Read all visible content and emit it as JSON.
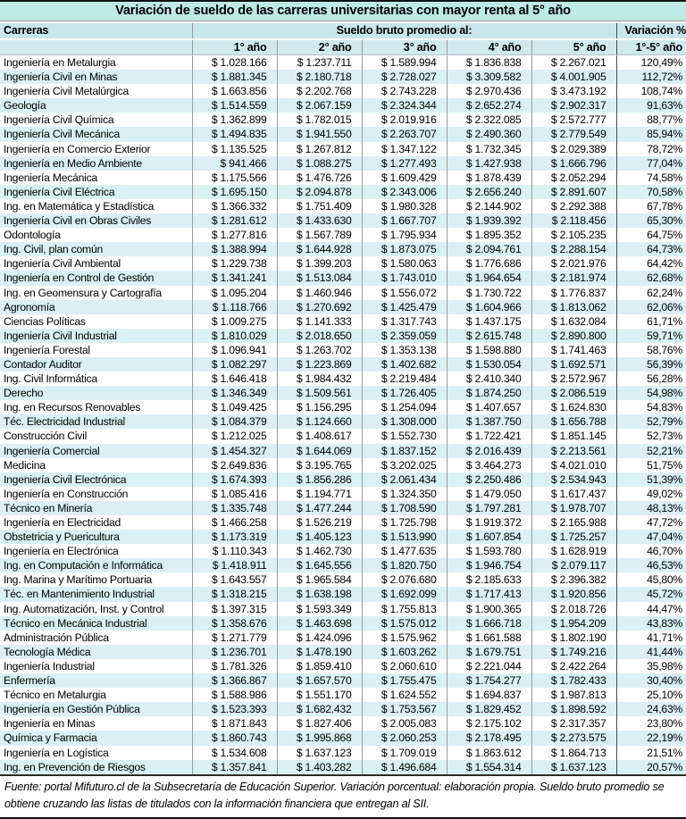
{
  "title": "Variación de sueldo de las carreras universitarias con mayor renta al 5° año",
  "header": {
    "careers": "Carreras",
    "salary_group": "Sueldo bruto promedio al:",
    "variation": "Variación %",
    "year_cols": [
      "1° año",
      "2° año",
      "3° año",
      "4° año",
      "5° año"
    ],
    "variation_sub": "1°-5° año"
  },
  "colors": {
    "title_band": "#bdeae3",
    "header_band": "#c9e6ed",
    "subheader_band": "#cfe9ef",
    "alt_row": "#daf0f4",
    "grid_line": "#9b9b9b",
    "heavy_line": "#4a4a4a"
  },
  "table": {
    "rows": [
      {
        "carrera": "Ingeniería en Metalurgia",
        "values": [
          "$ 1.028.166",
          "$ 1.237.711",
          "$ 1.589.994",
          "$ 1.836.838",
          "$ 2.267.021"
        ],
        "variacion": "120,49%"
      },
      {
        "carrera": "Ingeniería Civil en Minas",
        "values": [
          "$ 1.881.345",
          "$ 2.180.718",
          "$ 2.728.027",
          "$ 3.309.582",
          "$ 4.001.905"
        ],
        "variacion": "112,72%"
      },
      {
        "carrera": "Ingeniería Civil Metalúrgica",
        "values": [
          "$ 1.663.856",
          "$ 2.202.768",
          "$ 2.743.228",
          "$ 2.970.436",
          "$ 3.473.192"
        ],
        "variacion": "108,74%"
      },
      {
        "carrera": "Geología",
        "values": [
          "$ 1.514.559",
          "$ 2.067.159",
          "$ 2.324.344",
          "$ 2.652.274",
          "$ 2.902.317"
        ],
        "variacion": "91,63%"
      },
      {
        "carrera": "Ingeniería Civil Química",
        "values": [
          "$ 1.362.899",
          "$ 1.782.015",
          "$ 2.019.916",
          "$ 2.322.085",
          "$ 2.572.777"
        ],
        "variacion": "88,77%"
      },
      {
        "carrera": "Ingeniería Civil Mecánica",
        "values": [
          "$ 1.494.835",
          "$ 1.941.550",
          "$ 2.263.707",
          "$ 2.490.360",
          "$ 2.779.549"
        ],
        "variacion": "85,94%"
      },
      {
        "carrera": "Ingeniería en Comercio Exterior",
        "values": [
          "$ 1.135.525",
          "$ 1.267.812",
          "$ 1.347.122",
          "$ 1.732.345",
          "$ 2.029.389"
        ],
        "variacion": "78,72%"
      },
      {
        "carrera": "Ingeniería en Medio Ambiente",
        "values": [
          "$ 941.466",
          "$ 1.088.275",
          "$ 1.277.493",
          "$ 1.427.938",
          "$ 1.666.796"
        ],
        "variacion": "77,04%"
      },
      {
        "carrera": "Ingeniería Mecánica",
        "values": [
          "$ 1.175.566",
          "$ 1.476.726",
          "$ 1.609.429",
          "$ 1.878.439",
          "$ 2.052.294"
        ],
        "variacion": "74,58%"
      },
      {
        "carrera": "Ingeniería Civil Eléctrica",
        "values": [
          "$ 1.695.150",
          "$ 2.094.878",
          "$ 2.343.006",
          "$ 2.656.240",
          "$ 2.891.607"
        ],
        "variacion": "70,58%"
      },
      {
        "carrera": "Ing. en Matemática y Estadística",
        "values": [
          "$ 1.366.332",
          "$ 1.751.409",
          "$ 1.980.328",
          "$ 2.144.902",
          "$ 2.292.388"
        ],
        "variacion": "67,78%"
      },
      {
        "carrera": "Ingeniería Civil en Obras Civiles",
        "values": [
          "$ 1.281.612",
          "$ 1.433.630",
          "$ 1.667.707",
          "$ 1.939.392",
          "$ 2.118.456"
        ],
        "variacion": "65,30%"
      },
      {
        "carrera": "Odontología",
        "values": [
          "$ 1.277.816",
          "$ 1.567.789",
          "$ 1.795.934",
          "$ 1.895.352",
          "$ 2.105.235"
        ],
        "variacion": "64,75%"
      },
      {
        "carrera": "Ing. Civil, plan común",
        "values": [
          "$ 1.388.994",
          "$ 1.644.928",
          "$ 1.873.075",
          "$ 2.094.761",
          "$ 2.288.154"
        ],
        "variacion": "64,73%"
      },
      {
        "carrera": "Ingeniería Civil Ambiental",
        "values": [
          "$ 1.229.738",
          "$ 1.399.203",
          "$ 1.580.063",
          "$ 1.776.686",
          "$ 2.021.976"
        ],
        "variacion": "64,42%"
      },
      {
        "carrera": "Ingeniería en Control de Gestión",
        "values": [
          "$ 1.341.241",
          "$ 1.513.084",
          "$ 1.743.010",
          "$ 1.964.654",
          "$ 2.181.974"
        ],
        "variacion": "62,68%"
      },
      {
        "carrera": "Ing. en Geomensura y Cartografía",
        "values": [
          "$ 1.095.204",
          "$ 1.460.946",
          "$ 1.556.072",
          "$ 1.730.722",
          "$ 1.776.837"
        ],
        "variacion": "62,24%"
      },
      {
        "carrera": "Agronomía",
        "values": [
          "$ 1.118.766",
          "$ 1.270.692",
          "$ 1.425.479",
          "$ 1.604.966",
          "$ 1.813.062"
        ],
        "variacion": "62,06%"
      },
      {
        "carrera": "Ciencias Políticas",
        "values": [
          "$ 1.009.275",
          "$ 1.141.333",
          "$ 1.317.743",
          "$ 1.437.175",
          "$ 1.632.084"
        ],
        "variacion": "61,71%"
      },
      {
        "carrera": "Ingeniería Civil Industrial",
        "values": [
          "$ 1.810.029",
          "$ 2.018.650",
          "$ 2.359.059",
          "$ 2.615.748",
          "$ 2.890.800"
        ],
        "variacion": "59,71%"
      },
      {
        "carrera": "Ingeniería Forestal",
        "values": [
          "$ 1.096.941",
          "$ 1.263.702",
          "$ 1.353.138",
          "$ 1.598.880",
          "$ 1.741.463"
        ],
        "variacion": "58,76%"
      },
      {
        "carrera": "Contador Auditor",
        "values": [
          "$ 1.082.297",
          "$ 1.223.869",
          "$ 1.402.682",
          "$ 1.530.054",
          "$ 1.692.571"
        ],
        "variacion": "56,39%"
      },
      {
        "carrera": "Ing. Civil Informática",
        "values": [
          "$ 1.646.418",
          "$ 1.984.432",
          "$ 2.219.484",
          "$ 2.410.340",
          "$ 2.572.967"
        ],
        "variacion": "56,28%"
      },
      {
        "carrera": "Derecho",
        "values": [
          "$ 1.346.349",
          "$ 1.509.561",
          "$ 1.726.405",
          "$ 1.874.250",
          "$ 2.086.519"
        ],
        "variacion": "54,98%"
      },
      {
        "carrera": "Ing. en Recursos Renovables",
        "values": [
          "$ 1.049.425",
          "$ 1.156.295",
          "$ 1.254.094",
          "$ 1.407.657",
          "$ 1.624.830"
        ],
        "variacion": "54,83%"
      },
      {
        "carrera": "Téc. Electricidad Industrial",
        "values": [
          "$ 1.084.379",
          "$ 1.124.660",
          "$ 1.308.000",
          "$ 1.387.750",
          "$ 1.656.788"
        ],
        "variacion": "52,79%"
      },
      {
        "carrera": "Construcción Civil",
        "values": [
          "$ 1.212.025",
          "$ 1.408.617",
          "$ 1.552.730",
          "$ 1.722.421",
          "$ 1.851.145"
        ],
        "variacion": "52,73%"
      },
      {
        "carrera": "Ingeniería Comercial",
        "values": [
          "$ 1.454.327",
          "$ 1.644.069",
          "$ 1.837.152",
          "$ 2.016.439",
          "$ 2.213.561"
        ],
        "variacion": "52,21%"
      },
      {
        "carrera": "Medicina",
        "values": [
          "$ 2.649.836",
          "$ 3.195.765",
          "$ 3.202.025",
          "$ 3.464.273",
          "$ 4.021.010"
        ],
        "variacion": "51,75%"
      },
      {
        "carrera": "Ingeniería Civil Electrónica",
        "values": [
          "$ 1.674.393",
          "$ 1.856.286",
          "$ 2.061.434",
          "$ 2.250.486",
          "$ 2.534.943"
        ],
        "variacion": "51,39%"
      },
      {
        "carrera": "Ingeniería en Construcción",
        "values": [
          "$ 1.085.416",
          "$ 1.194.771",
          "$ 1.324.350",
          "$ 1.479.050",
          "$ 1.617.437"
        ],
        "variacion": "49,02%"
      },
      {
        "carrera": "Técnico en Minería",
        "values": [
          "$ 1.335.748",
          "$ 1.477.244",
          "$ 1.708.590",
          "$ 1.797.281",
          "$ 1.978.707"
        ],
        "variacion": "48,13%"
      },
      {
        "carrera": "Ingeniería en Electricidad",
        "values": [
          "$ 1.466.258",
          "$ 1.526.219",
          "$ 1.725.798",
          "$ 1.919.372",
          "$ 2.165.988"
        ],
        "variacion": "47,72%"
      },
      {
        "carrera": "Obstetricia y Puericultura",
        "values": [
          "$ 1.173.319",
          "$ 1.405.123",
          "$ 1.513.990",
          "$ 1.607.854",
          "$ 1.725.257"
        ],
        "variacion": "47,04%"
      },
      {
        "carrera": "Ingeniería en Electrónica",
        "values": [
          "$ 1.110.343",
          "$ 1.462.730",
          "$ 1.477.635",
          "$ 1.593.780",
          "$ 1.628.919"
        ],
        "variacion": "46,70%"
      },
      {
        "carrera": "Ing. en Computación e Informática",
        "values": [
          "$ 1.418.911",
          "$ 1.645.556",
          "$ 1.820.750",
          "$ 1.946.754",
          "$ 2.079.117"
        ],
        "variacion": "46,53%"
      },
      {
        "carrera": "Ing. Marina y Marítimo Portuaria",
        "values": [
          "$ 1.643.557",
          "$ 1.965.584",
          "$ 2.076.680",
          "$ 2.185.633",
          "$ 2.396.382"
        ],
        "variacion": "45,80%"
      },
      {
        "carrera": "Téc. en Mantenimiento Industrial",
        "values": [
          "$ 1.318.215",
          "$ 1.638.198",
          "$ 1.692.099",
          "$ 1.717.413",
          "$ 1.920.856"
        ],
        "variacion": "45,72%"
      },
      {
        "carrera": "Ing. Automatización, Inst. y Control",
        "values": [
          "$ 1.397.315",
          "$ 1.593.349",
          "$ 1.755.813",
          "$ 1.900.365",
          "$ 2.018.726"
        ],
        "variacion": "44,47%"
      },
      {
        "carrera": "Técnico en Mecánica Industrial",
        "values": [
          "$ 1.358.676",
          "$ 1.463.698",
          "$ 1.575.012",
          "$ 1.666.718",
          "$ 1.954.209"
        ],
        "variacion": "43,83%"
      },
      {
        "carrera": "Administración Pública",
        "values": [
          "$ 1.271.779",
          "$ 1.424.096",
          "$ 1.575.962",
          "$ 1.661.588",
          "$ 1.802.190"
        ],
        "variacion": "41,71%"
      },
      {
        "carrera": "Tecnología Médica",
        "values": [
          "$ 1.236.701",
          "$ 1.478.190",
          "$ 1.603.262",
          "$ 1.679.751",
          "$ 1.749.216"
        ],
        "variacion": "41,44%"
      },
      {
        "carrera": "Ingeniería Industrial",
        "values": [
          "$ 1.781.326",
          "$ 1.859.410",
          "$ 2.060.610",
          "$ 2.221.044",
          "$ 2.422.264"
        ],
        "variacion": "35,98%"
      },
      {
        "carrera": "Enfermería",
        "values": [
          "$ 1.366.867",
          "$ 1.657.570",
          "$ 1.755.475",
          "$ 1.754.277",
          "$ 1.782.433"
        ],
        "variacion": "30,40%"
      },
      {
        "carrera": "Técnico en Metalurgia",
        "values": [
          "$ 1.588.986",
          "$ 1.551.170",
          "$ 1.624.552",
          "$ 1.694.837",
          "$ 1.987.813"
        ],
        "variacion": "25,10%"
      },
      {
        "carrera": "Ingeniería en Gestión Pública",
        "values": [
          "$ 1.523.393",
          "$ 1.682.432",
          "$ 1.753.567",
          "$ 1.829.452",
          "$ 1.898.592"
        ],
        "variacion": "24,63%"
      },
      {
        "carrera": "Ingeniería en Minas",
        "values": [
          "$ 1.871.843",
          "$ 1.827.406",
          "$ 2.005.083",
          "$ 2.175.102",
          "$ 2.317.357"
        ],
        "variacion": "23,80%"
      },
      {
        "carrera": "Química y Farmacia",
        "values": [
          "$ 1.860.743",
          "$ 1.995.868",
          "$ 2.060.253",
          "$ 2.178.495",
          "$ 2.273.575"
        ],
        "variacion": "22,19%"
      },
      {
        "carrera": "Ingeniería en Logística",
        "values": [
          "$ 1.534.608",
          "$ 1.637.123",
          "$ 1.709.019",
          "$ 1.863.612",
          "$ 1.864.713"
        ],
        "variacion": "21,51%"
      },
      {
        "carrera": "Ing. en Prevención de Riesgos",
        "values": [
          "$ 1.357.841",
          "$ 1.403.282",
          "$ 1.496.684",
          "$ 1.554.314",
          "$ 1.637.123"
        ],
        "variacion": "20,57%"
      }
    ]
  },
  "footer": {
    "line1": "Fuente: portal Mifuturo.cl de la Subsecretaría de Educación Superior. Variación porcentual: elaboración propia. Sueldo bruto promedio se obtiene",
    "line2": "cruzando las listas de titulados con la información financiera que entregan al SII."
  }
}
